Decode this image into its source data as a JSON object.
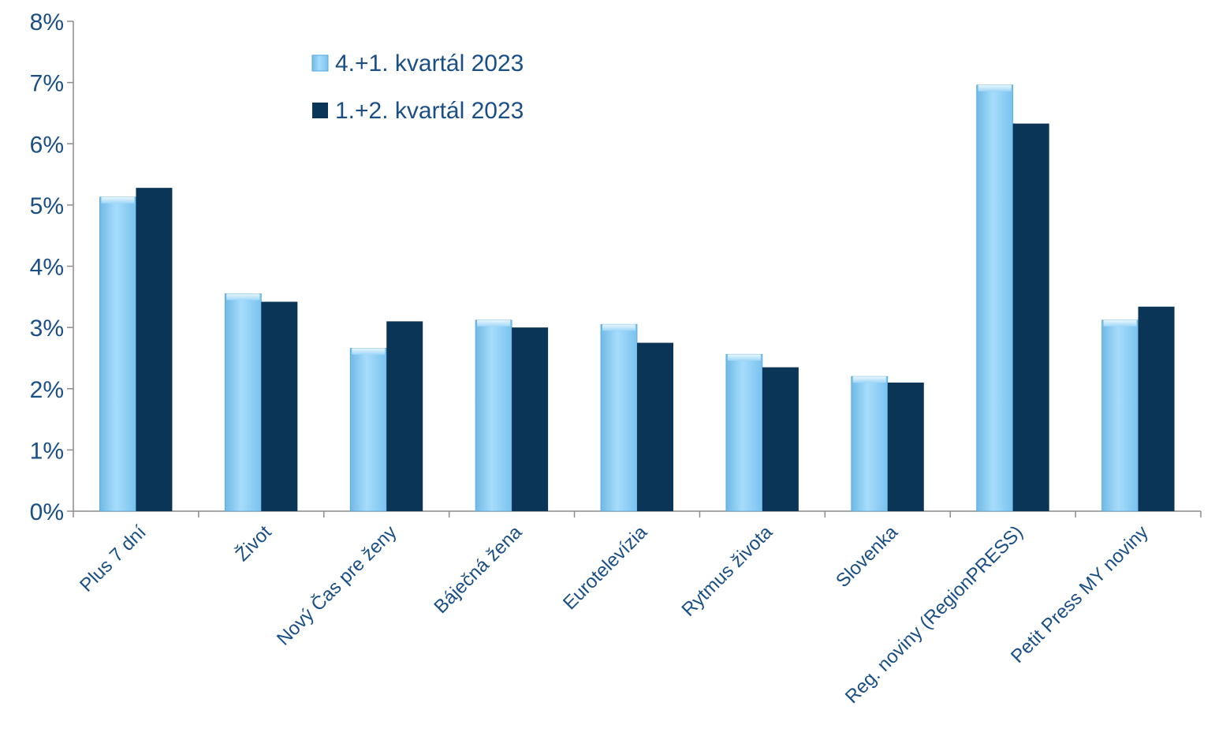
{
  "chart_data": {
    "type": "bar",
    "categories": [
      "Plus 7 dní",
      "Život",
      "Nový Čas pre ženy",
      "Báječná žena",
      "Eurotelevízia",
      "Rytmus života",
      "Slovenka",
      "Reg. noviny (RegionPRESS)",
      "Petit Press MY noviny"
    ],
    "series": [
      {
        "name": "4.+1. kvartál 2023",
        "values": [
          5.13,
          3.55,
          2.66,
          3.12,
          3.05,
          2.56,
          2.2,
          6.96,
          3.12
        ],
        "color": "#8fd0f5"
      },
      {
        "name": "1.+2. kvartál 2023",
        "values": [
          5.28,
          3.42,
          3.1,
          3.0,
          2.75,
          2.35,
          2.1,
          6.33,
          3.34
        ],
        "color": "#0b3556"
      }
    ],
    "y_ticks": [
      "0%",
      "1%",
      "2%",
      "3%",
      "4%",
      "5%",
      "6%",
      "7%",
      "8%"
    ],
    "ylim": [
      0,
      8
    ],
    "title": "",
    "xlabel": "",
    "ylabel": "",
    "grid": false,
    "legend_position": "top-center",
    "text_color": "#1a4f86",
    "axis_color": "#8c8c8c"
  }
}
